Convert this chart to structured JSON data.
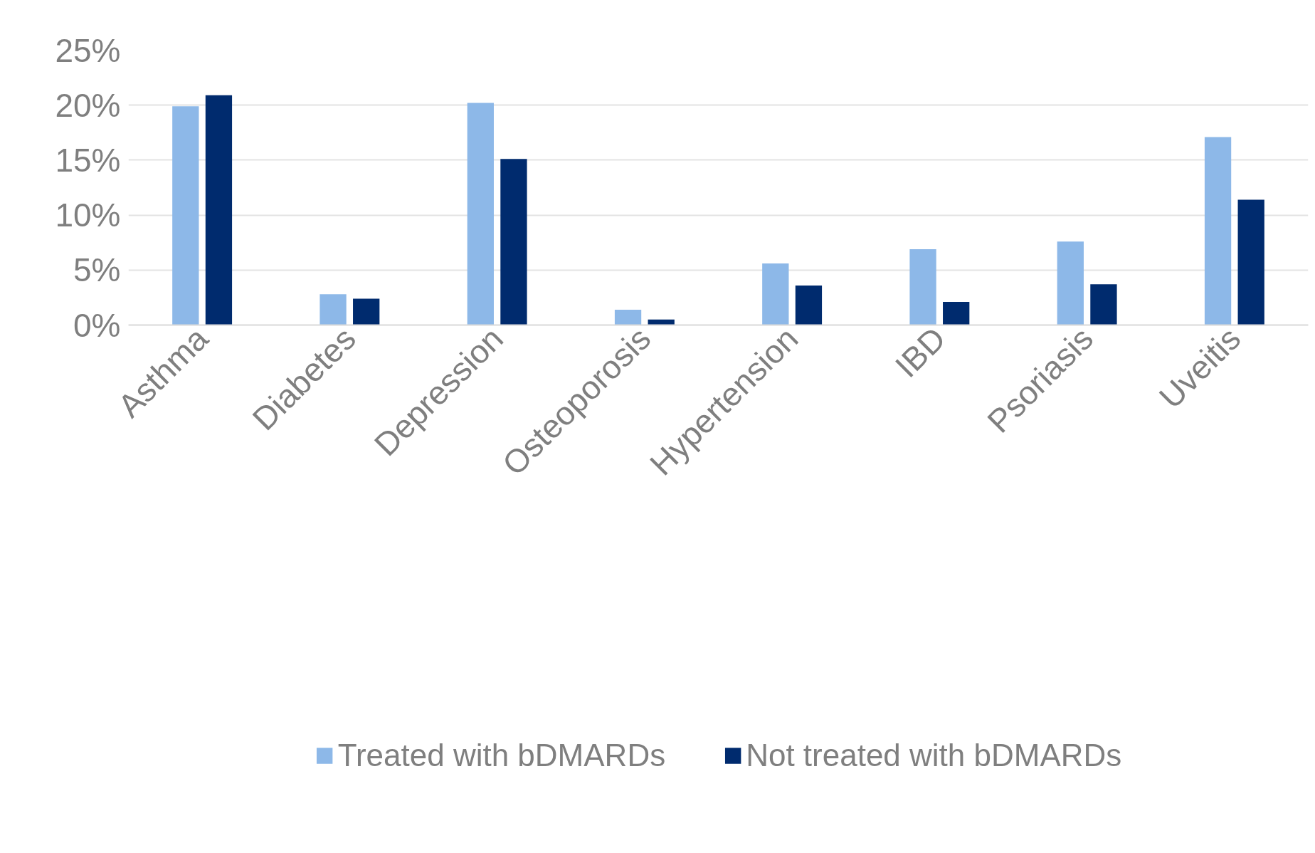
{
  "chart_data": {
    "type": "bar",
    "categories": [
      "Asthma",
      "Diabetes",
      "Depression",
      "Osteoporosis",
      "Hypertension",
      "IBD",
      "Psoriasis",
      "Uveitis"
    ],
    "series": [
      {
        "name": "Treated with bDMARDs",
        "color": "#8db8e8",
        "values": [
          19.9,
          2.8,
          20.2,
          1.4,
          5.6,
          6.9,
          7.6,
          17.1
        ]
      },
      {
        "name": "Not treated with bDMARDs",
        "color": "#002b6e",
        "values": [
          20.9,
          2.4,
          15.1,
          0.5,
          3.6,
          2.1,
          3.7,
          11.4
        ]
      }
    ],
    "ylim": [
      0,
      25
    ],
    "yticks": [
      {
        "value": 0,
        "label": "0%"
      },
      {
        "value": 5,
        "label": "5%"
      },
      {
        "value": 10,
        "label": "10%"
      },
      {
        "value": 15,
        "label": "15%"
      },
      {
        "value": 20,
        "label": "20%"
      },
      {
        "value": 25,
        "label": "25%"
      }
    ],
    "grid": "y",
    "legend": "bottom"
  }
}
